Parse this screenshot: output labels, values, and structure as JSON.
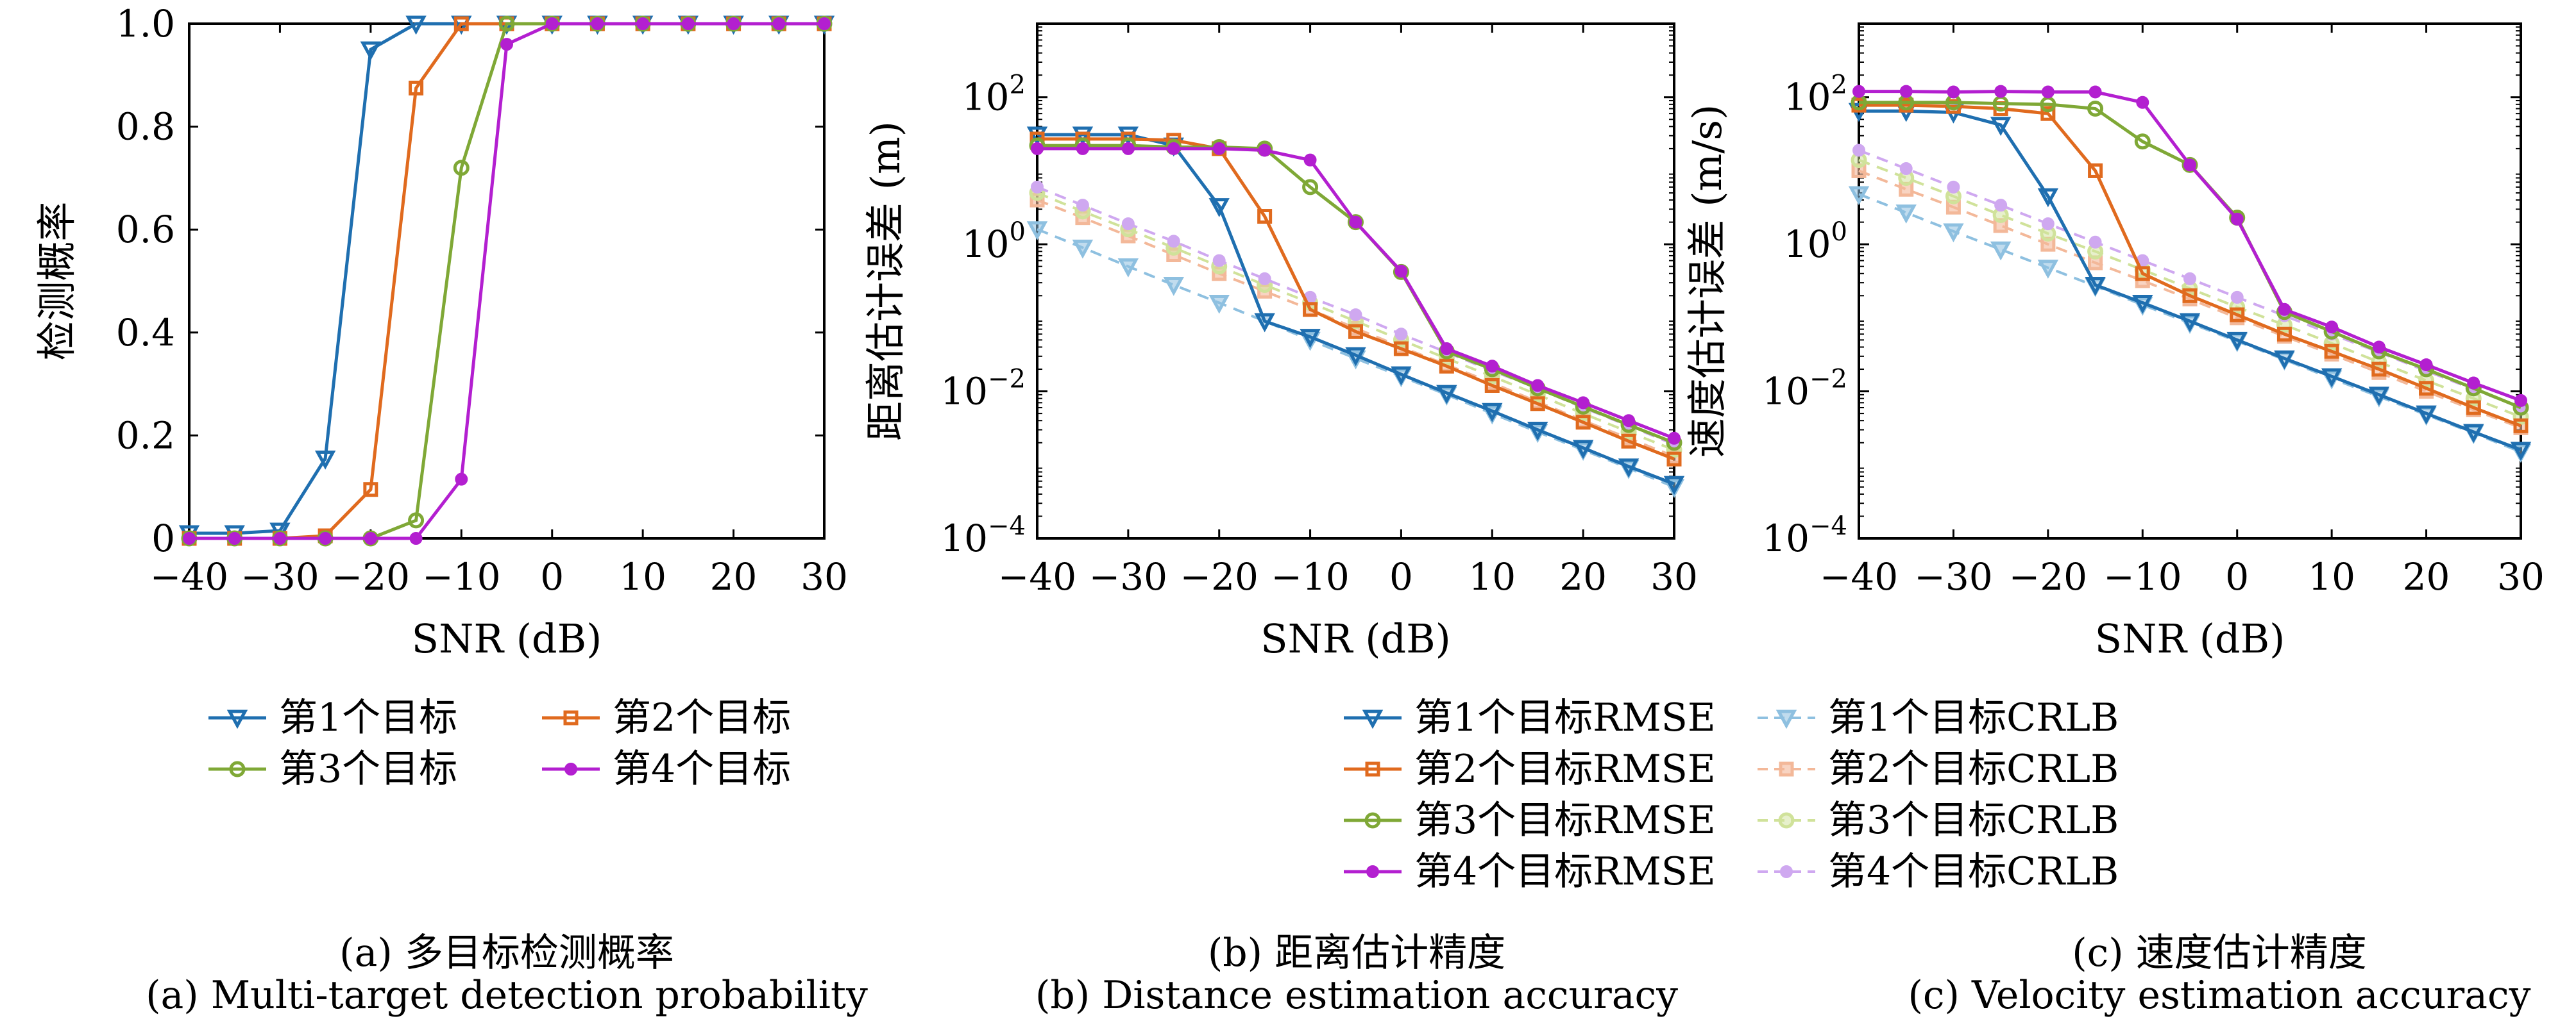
{
  "chart_data": [
    {
      "id": "a",
      "type": "line",
      "xlabel": "SNR (dB)",
      "ylabel": "检测概率",
      "xlim": [
        -40,
        30
      ],
      "ylim": [
        0,
        1
      ],
      "yscale": "linear",
      "xticks": [
        "−40",
        "−30",
        "−20",
        "−10",
        "0",
        "10",
        "20",
        "30"
      ],
      "yticks": [
        "0",
        "0.2",
        "0.4",
        "0.6",
        "0.8",
        "1.0"
      ],
      "x": [
        -40,
        -35,
        -30,
        -25,
        -20,
        -15,
        -10,
        -5,
        0,
        5,
        10,
        15,
        20,
        25,
        30
      ],
      "series": [
        {
          "name": "第1个目标",
          "color": "#1f6fb0",
          "marker": "triangle-down",
          "values": [
            0.01,
            0.01,
            0.015,
            0.155,
            0.95,
            1.0,
            1.0,
            1.0,
            1.0,
            1.0,
            1.0,
            1.0,
            1.0,
            1.0,
            1.0
          ]
        },
        {
          "name": "第2个目标",
          "color": "#e06a1e",
          "marker": "square",
          "values": [
            0.0,
            0.0,
            0.0,
            0.005,
            0.095,
            0.875,
            1.0,
            1.0,
            1.0,
            1.0,
            1.0,
            1.0,
            1.0,
            1.0,
            1.0
          ]
        },
        {
          "name": "第3个目标",
          "color": "#7fa836",
          "marker": "circle",
          "values": [
            0.0,
            0.0,
            0.0,
            0.0,
            0.0,
            0.035,
            0.72,
            1.0,
            1.0,
            1.0,
            1.0,
            1.0,
            1.0,
            1.0,
            1.0
          ]
        },
        {
          "name": "第4个目标",
          "color": "#b31fd0",
          "marker": "dot",
          "values": [
            0.0,
            0.0,
            0.0,
            0.0,
            0.0,
            0.0,
            0.115,
            0.96,
            1.0,
            1.0,
            1.0,
            1.0,
            1.0,
            1.0,
            1.0
          ]
        }
      ],
      "legend": "below",
      "caption_cn": "(a) 多目标检测概率",
      "caption_en": "(a) Multi-target detection probability"
    },
    {
      "id": "b",
      "type": "line",
      "xlabel": "SNR (dB)",
      "ylabel": "距离估计误差 (m)",
      "xlim": [
        -40,
        30
      ],
      "ylim": [
        0.0001,
        1000
      ],
      "yscale": "log",
      "xticks": [
        "−40",
        "−30",
        "−20",
        "−10",
        "0",
        "10",
        "20",
        "30"
      ],
      "yticks": [
        "10^-4",
        "10^-2",
        "10^0",
        "10^2"
      ],
      "x": [
        -40,
        -35,
        -30,
        -25,
        -20,
        -15,
        -10,
        -5,
        0,
        5,
        10,
        15,
        20,
        25,
        30
      ],
      "series": [
        {
          "name": "第1个目标RMSE",
          "color": "#1f6fb0",
          "marker": "triangle-down",
          "dashed": false,
          "values": [
            31,
            31,
            31,
            22,
            3.3,
            0.09,
            0.055,
            0.031,
            0.017,
            0.0095,
            0.0054,
            0.003,
            0.0017,
            0.00095,
            0.00055
          ]
        },
        {
          "name": "第2个目标RMSE",
          "color": "#e06a1e",
          "marker": "square",
          "dashed": false,
          "values": [
            27,
            27,
            27,
            26,
            20,
            2.4,
            0.13,
            0.065,
            0.038,
            0.022,
            0.012,
            0.0068,
            0.0038,
            0.0021,
            0.0012
          ]
        },
        {
          "name": "第3个目标RMSE",
          "color": "#7fa836",
          "marker": "circle",
          "dashed": false,
          "values": [
            22,
            22,
            22,
            21,
            21,
            20,
            6.0,
            2.0,
            0.42,
            0.035,
            0.02,
            0.011,
            0.0062,
            0.0035,
            0.002
          ]
        },
        {
          "name": "第4个目标RMSE",
          "color": "#b31fd0",
          "marker": "dot",
          "dashed": false,
          "values": [
            20,
            20,
            20,
            20,
            20,
            19,
            14,
            2.0,
            0.43,
            0.038,
            0.022,
            0.012,
            0.007,
            0.004,
            0.0023
          ]
        },
        {
          "name": "第1个目标CRLB",
          "color": "#8ec0e0",
          "marker": "triangle-down",
          "dashed": true,
          "values": [
            1.6,
            0.9,
            0.5,
            0.28,
            0.16,
            0.09,
            0.05,
            0.028,
            0.016,
            0.009,
            0.005,
            0.0028,
            0.0016,
            0.0009,
            0.0005
          ]
        },
        {
          "name": "第2个目标CRLB",
          "color": "#f3b899",
          "marker": "square",
          "dashed": true,
          "values": [
            4.0,
            2.3,
            1.3,
            0.72,
            0.4,
            0.23,
            0.13,
            0.072,
            0.04,
            0.023,
            0.013,
            0.0072,
            0.004,
            0.0023,
            0.0013
          ]
        },
        {
          "name": "第3个目标CRLB",
          "color": "#d0e29a",
          "marker": "circle",
          "dashed": true,
          "values": [
            5.0,
            2.8,
            1.6,
            0.9,
            0.5,
            0.28,
            0.16,
            0.09,
            0.05,
            0.028,
            0.016,
            0.009,
            0.005,
            0.0028,
            0.0016
          ]
        },
        {
          "name": "第4个目标CRLB",
          "color": "#cfa8f0",
          "marker": "dot",
          "dashed": true,
          "values": [
            6.0,
            3.4,
            1.9,
            1.1,
            0.6,
            0.34,
            0.19,
            0.11,
            0.06,
            0.034,
            0.019,
            0.011,
            0.006,
            0.0034,
            0.0019
          ]
        }
      ],
      "legend": "below",
      "caption_cn": "(b) 距离估计精度",
      "caption_en": "(b) Distance estimation accuracy"
    },
    {
      "id": "c",
      "type": "line",
      "xlabel": "SNR (dB)",
      "ylabel": "速度估计误差 (m/s)",
      "xlim": [
        -40,
        30
      ],
      "ylim": [
        0.0001,
        1000
      ],
      "yscale": "log",
      "xticks": [
        "−40",
        "−30",
        "−20",
        "−10",
        "0",
        "10",
        "20",
        "30"
      ],
      "yticks": [
        "10^-4",
        "10^-2",
        "10^0",
        "10^2"
      ],
      "x": [
        -40,
        -35,
        -30,
        -25,
        -20,
        -15,
        -10,
        -5,
        0,
        5,
        10,
        15,
        20,
        25,
        30
      ],
      "series": [
        {
          "name": "第1个目标RMSE",
          "color": "#1f6fb0",
          "marker": "triangle-down",
          "dashed": false,
          "values": [
            65,
            65,
            62,
            42,
            4.5,
            0.28,
            0.16,
            0.09,
            0.05,
            0.028,
            0.016,
            0.009,
            0.005,
            0.0028,
            0.0016
          ]
        },
        {
          "name": "第2个目标RMSE",
          "color": "#e06a1e",
          "marker": "square",
          "dashed": false,
          "values": [
            78,
            78,
            75,
            70,
            60,
            10,
            0.4,
            0.2,
            0.11,
            0.06,
            0.035,
            0.02,
            0.011,
            0.006,
            0.0034
          ]
        },
        {
          "name": "第3个目标RMSE",
          "color": "#7fa836",
          "marker": "circle",
          "dashed": false,
          "values": [
            85,
            85,
            85,
            82,
            80,
            70,
            25,
            12,
            2.3,
            0.12,
            0.065,
            0.035,
            0.02,
            0.011,
            0.006
          ]
        },
        {
          "name": "第4个目标RMSE",
          "color": "#b31fd0",
          "marker": "dot",
          "dashed": false,
          "values": [
            120,
            120,
            118,
            120,
            118,
            118,
            85,
            12,
            2.2,
            0.13,
            0.075,
            0.04,
            0.023,
            0.013,
            0.0075
          ]
        },
        {
          "name": "第1个目标CRLB",
          "color": "#8ec0e0",
          "marker": "triangle-down",
          "dashed": true,
          "values": [
            4.8,
            2.7,
            1.5,
            0.85,
            0.48,
            0.27,
            0.15,
            0.085,
            0.048,
            0.027,
            0.015,
            0.0085,
            0.0048,
            0.0027,
            0.0015
          ]
        },
        {
          "name": "第2个目标CRLB",
          "color": "#f3b899",
          "marker": "square",
          "dashed": true,
          "values": [
            10,
            5.6,
            3.2,
            1.8,
            1.0,
            0.56,
            0.32,
            0.18,
            0.1,
            0.056,
            0.032,
            0.018,
            0.01,
            0.0056,
            0.0032
          ]
        },
        {
          "name": "第3个目标CRLB",
          "color": "#d0e29a",
          "marker": "circle",
          "dashed": true,
          "values": [
            14,
            8.0,
            4.5,
            2.5,
            1.4,
            0.8,
            0.45,
            0.25,
            0.14,
            0.08,
            0.045,
            0.025,
            0.014,
            0.008,
            0.0045
          ]
        },
        {
          "name": "第4个目标CRLB",
          "color": "#cfa8f0",
          "marker": "dot",
          "dashed": true,
          "values": [
            19,
            10.7,
            6.0,
            3.4,
            1.9,
            1.07,
            0.6,
            0.34,
            0.19,
            0.107,
            0.06,
            0.034,
            0.019,
            0.0107,
            0.006
          ]
        }
      ],
      "legend": "below",
      "caption_cn": "(c) 速度估计精度",
      "caption_en": "(c) Velocity estimation accuracy"
    }
  ],
  "legend_a": [
    {
      "label": "第1个目标",
      "color": "#1f6fb0",
      "marker": "triangle-down"
    },
    {
      "label": "第2个目标",
      "color": "#e06a1e",
      "marker": "square"
    },
    {
      "label": "第3个目标",
      "color": "#7fa836",
      "marker": "circle"
    },
    {
      "label": "第4个目标",
      "color": "#b31fd0",
      "marker": "dot"
    }
  ],
  "legend_bc": [
    {
      "label": "第1个目标RMSE",
      "color": "#1f6fb0",
      "marker": "triangle-down",
      "dashed": false
    },
    {
      "label": "第1个目标CRLB",
      "color": "#8ec0e0",
      "marker": "triangle-down",
      "dashed": true
    },
    {
      "label": "第2个目标RMSE",
      "color": "#e06a1e",
      "marker": "square",
      "dashed": false
    },
    {
      "label": "第2个目标CRLB",
      "color": "#f3b899",
      "marker": "square",
      "dashed": true
    },
    {
      "label": "第3个目标RMSE",
      "color": "#7fa836",
      "marker": "circle",
      "dashed": false
    },
    {
      "label": "第3个目标CRLB",
      "color": "#d0e29a",
      "marker": "circle",
      "dashed": true
    },
    {
      "label": "第4个目标RMSE",
      "color": "#b31fd0",
      "marker": "dot",
      "dashed": false
    },
    {
      "label": "第4个目标CRLB",
      "color": "#cfa8f0",
      "marker": "dot",
      "dashed": true
    }
  ]
}
